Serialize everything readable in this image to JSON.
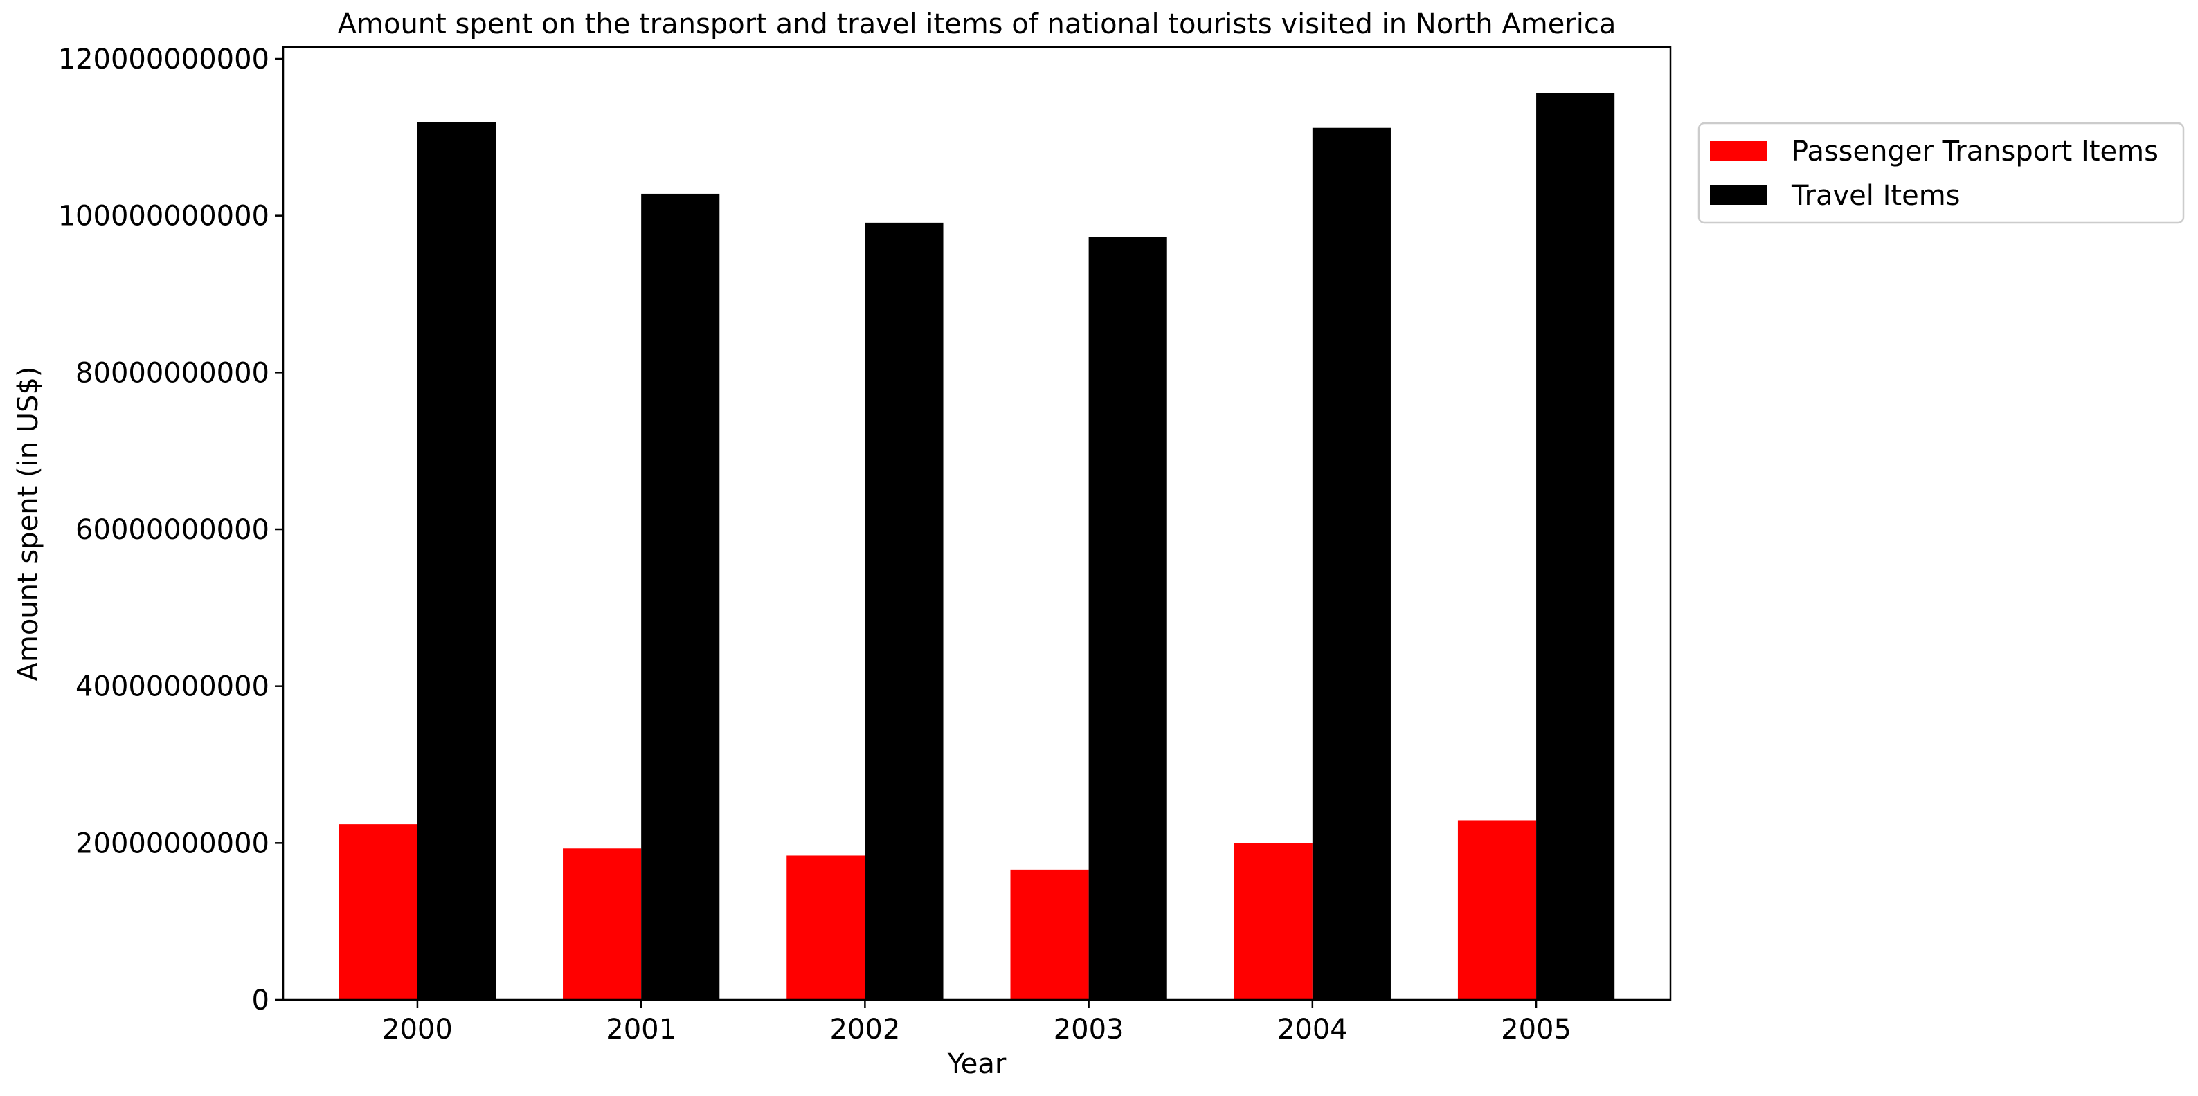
{
  "chart_data": {
    "type": "bar",
    "title": "Amount spent on the transport and travel items of national tourists visited in North America",
    "xlabel": "Year",
    "ylabel": "Amount spent (in US$)",
    "categories": [
      "2000",
      "2001",
      "2002",
      "2003",
      "2004",
      "2005"
    ],
    "ylim": [
      0,
      121500000000
    ],
    "yticks": [
      0,
      20000000000,
      40000000000,
      60000000000,
      80000000000,
      100000000000,
      120000000000
    ],
    "ytick_labels": [
      "0",
      "20000000000",
      "40000000000",
      "60000000000",
      "80000000000",
      "100000000000",
      "120000000000"
    ],
    "grid": false,
    "legend_position": "outside top-right",
    "series": [
      {
        "name": "Passenger Transport Items",
        "color": "#ff0000",
        "values": [
          22400000000,
          19300000000,
          18400000000,
          16600000000,
          20000000000,
          22900000000
        ]
      },
      {
        "name": "Travel Items",
        "color": "#000000",
        "values": [
          111900000000,
          102800000000,
          99100000000,
          97300000000,
          111200000000,
          115600000000
        ]
      }
    ]
  }
}
